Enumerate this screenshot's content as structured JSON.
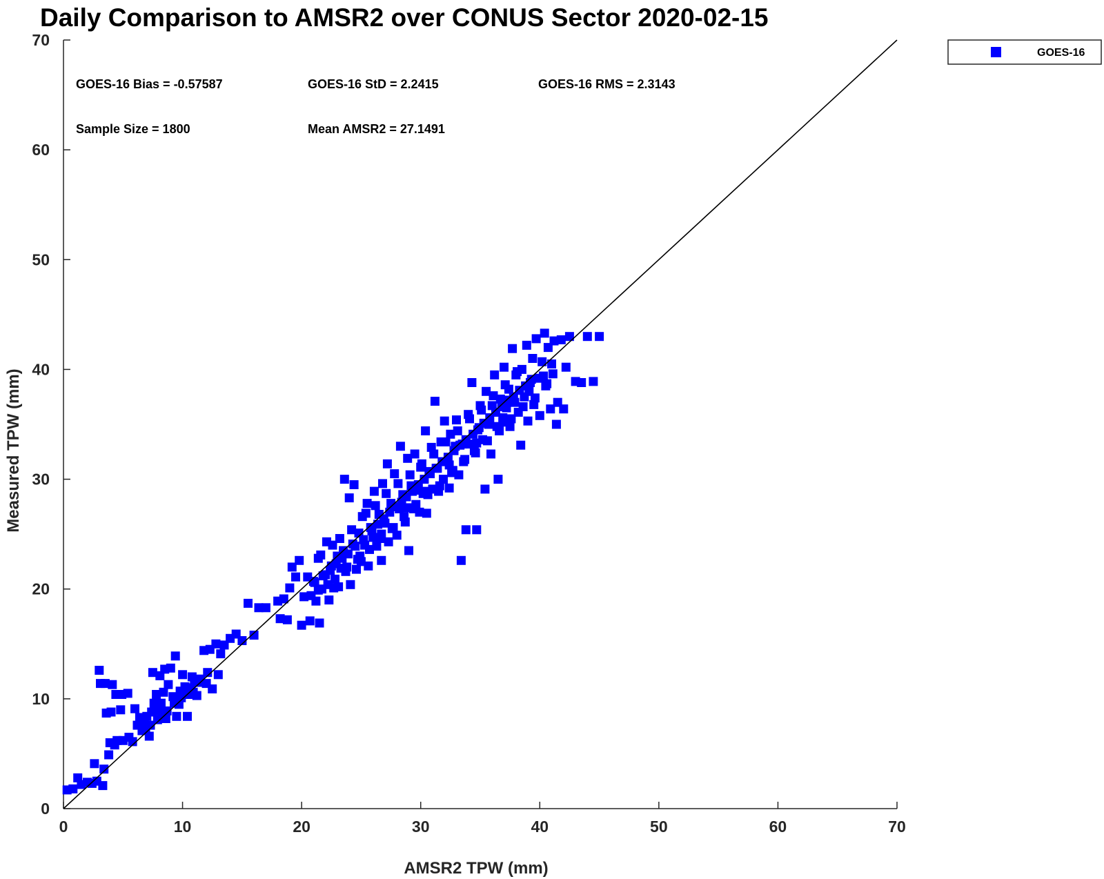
{
  "chart_data": {
    "type": "scatter",
    "title": "Daily Comparison to AMSR2 over CONUS Sector 2020-02-15",
    "xlabel": "AMSR2 TPW (mm)",
    "ylabel": "Measured TPW (mm)",
    "xlim": [
      0,
      70
    ],
    "ylim": [
      0,
      70
    ],
    "xticks": [
      "0",
      "10",
      "20",
      "30",
      "40",
      "50",
      "60",
      "70"
    ],
    "yticks": [
      "0",
      "10",
      "20",
      "30",
      "40",
      "50",
      "60",
      "70"
    ],
    "grid": false,
    "legend_position": "outside top-right",
    "reference_line": {
      "x": [
        0,
        70
      ],
      "y": [
        0,
        70
      ]
    },
    "stats": {
      "bias": "GOES-16 Bias = -0.57587",
      "std": "GOES-16 StD = 2.2415",
      "rms": "GOES-16 RMS = 2.3143",
      "sample_size": "Sample Size = 1800",
      "mean": "Mean AMSR2 = 27.1491"
    },
    "series": [
      {
        "name": "GOES-16",
        "color": "#0000ff",
        "marker": "square",
        "points": [
          [
            0.3,
            1.7
          ],
          [
            0.8,
            1.8
          ],
          [
            1.2,
            2.8
          ],
          [
            1.5,
            2.2
          ],
          [
            2.0,
            2.4
          ],
          [
            2.4,
            2.3
          ],
          [
            2.6,
            4.1
          ],
          [
            2.8,
            2.5
          ],
          [
            3.0,
            12.6
          ],
          [
            3.1,
            11.4
          ],
          [
            3.3,
            2.1
          ],
          [
            3.4,
            3.6
          ],
          [
            3.5,
            11.4
          ],
          [
            3.6,
            8.7
          ],
          [
            3.8,
            4.9
          ],
          [
            3.9,
            6.0
          ],
          [
            4.0,
            8.8
          ],
          [
            4.1,
            11.3
          ],
          [
            4.3,
            5.8
          ],
          [
            4.4,
            10.4
          ],
          [
            4.5,
            6.2
          ],
          [
            4.8,
            9.0
          ],
          [
            4.9,
            10.4
          ],
          [
            5.0,
            6.2
          ],
          [
            5.4,
            10.5
          ],
          [
            5.5,
            6.5
          ],
          [
            5.8,
            6.1
          ],
          [
            6.0,
            9.1
          ],
          [
            6.2,
            7.6
          ],
          [
            6.4,
            8.3
          ],
          [
            6.6,
            7.1
          ],
          [
            6.8,
            7.9
          ],
          [
            7.0,
            8.4
          ],
          [
            7.2,
            6.6
          ],
          [
            7.4,
            8.8
          ],
          [
            7.5,
            12.4
          ],
          [
            7.6,
            9.6
          ],
          [
            7.8,
            10.4
          ],
          [
            8.0,
            8.9
          ],
          [
            8.1,
            12.1
          ],
          [
            8.2,
            9.6
          ],
          [
            8.4,
            10.6
          ],
          [
            8.5,
            12.7
          ],
          [
            8.6,
            8.2
          ],
          [
            8.8,
            11.3
          ],
          [
            9.0,
            12.8
          ],
          [
            9.2,
            10.2
          ],
          [
            9.4,
            13.9
          ],
          [
            9.5,
            8.4
          ],
          [
            9.8,
            10.7
          ],
          [
            10.0,
            12.2
          ],
          [
            10.2,
            11.1
          ],
          [
            10.4,
            8.4
          ],
          [
            10.5,
            10.4
          ],
          [
            10.8,
            12.0
          ],
          [
            11.0,
            11.6
          ],
          [
            11.2,
            10.3
          ],
          [
            11.5,
            11.8
          ],
          [
            11.8,
            14.4
          ],
          [
            12.0,
            11.4
          ],
          [
            12.3,
            14.5
          ],
          [
            12.5,
            10.9
          ],
          [
            12.8,
            15.0
          ],
          [
            13.0,
            12.2
          ],
          [
            13.2,
            14.1
          ],
          [
            13.5,
            14.9
          ],
          [
            14.0,
            15.5
          ],
          [
            14.5,
            15.9
          ],
          [
            15.0,
            15.3
          ],
          [
            15.5,
            18.7
          ],
          [
            16.0,
            15.8
          ],
          [
            16.4,
            18.3
          ],
          [
            17.0,
            18.3
          ],
          [
            18.0,
            18.9
          ],
          [
            18.2,
            17.3
          ],
          [
            18.5,
            19.1
          ],
          [
            18.8,
            17.2
          ],
          [
            19.0,
            20.1
          ],
          [
            19.2,
            22.0
          ],
          [
            19.5,
            21.1
          ],
          [
            19.8,
            22.6
          ],
          [
            20.0,
            16.7
          ],
          [
            20.2,
            19.3
          ],
          [
            20.5,
            21.1
          ],
          [
            20.7,
            17.1
          ],
          [
            21.0,
            20.7
          ],
          [
            21.2,
            18.9
          ],
          [
            21.4,
            22.8
          ],
          [
            21.5,
            16.9
          ],
          [
            21.7,
            20.0
          ],
          [
            22.0,
            21.3
          ],
          [
            22.1,
            24.3
          ],
          [
            22.3,
            19.0
          ],
          [
            22.5,
            22.1
          ],
          [
            22.7,
            20.1
          ],
          [
            23.0,
            23.0
          ],
          [
            23.1,
            20.2
          ],
          [
            23.3,
            21.9
          ],
          [
            23.5,
            23.5
          ],
          [
            23.6,
            30.0
          ],
          [
            23.8,
            22.0
          ],
          [
            24.0,
            28.3
          ],
          [
            24.1,
            20.4
          ],
          [
            24.3,
            24.1
          ],
          [
            24.4,
            29.5
          ],
          [
            24.6,
            21.8
          ],
          [
            24.8,
            25.1
          ],
          [
            25.0,
            22.5
          ],
          [
            25.1,
            26.6
          ],
          [
            25.3,
            24.0
          ],
          [
            25.5,
            27.8
          ],
          [
            25.6,
            22.1
          ],
          [
            25.8,
            25.6
          ],
          [
            26.0,
            24.7
          ],
          [
            26.1,
            28.9
          ],
          [
            26.3,
            23.9
          ],
          [
            26.5,
            26.8
          ],
          [
            26.7,
            22.6
          ],
          [
            26.8,
            29.6
          ],
          [
            27.0,
            26.0
          ],
          [
            27.2,
            31.4
          ],
          [
            27.3,
            24.3
          ],
          [
            27.5,
            27.8
          ],
          [
            27.7,
            25.6
          ],
          [
            27.8,
            30.5
          ],
          [
            28.0,
            24.9
          ],
          [
            28.2,
            27.3
          ],
          [
            28.3,
            33.0
          ],
          [
            28.5,
            28.6
          ],
          [
            28.7,
            26.1
          ],
          [
            28.9,
            31.9
          ],
          [
            29.0,
            23.5
          ],
          [
            29.2,
            29.4
          ],
          [
            29.4,
            27.3
          ],
          [
            29.5,
            32.3
          ],
          [
            29.7,
            29.0
          ],
          [
            29.9,
            27.0
          ],
          [
            30.0,
            31.1
          ],
          [
            30.2,
            28.7
          ],
          [
            30.4,
            34.4
          ],
          [
            30.5,
            26.9
          ],
          [
            30.7,
            30.7
          ],
          [
            30.9,
            32.9
          ],
          [
            31.0,
            29.1
          ],
          [
            31.2,
            37.1
          ],
          [
            31.4,
            31.0
          ],
          [
            31.5,
            28.9
          ],
          [
            31.7,
            33.4
          ],
          [
            31.9,
            30.0
          ],
          [
            32.0,
            35.3
          ],
          [
            32.2,
            31.6
          ],
          [
            32.4,
            29.2
          ],
          [
            32.5,
            34.1
          ],
          [
            32.7,
            30.8
          ],
          [
            32.9,
            33.0
          ],
          [
            33.0,
            35.4
          ],
          [
            33.2,
            30.4
          ],
          [
            33.4,
            22.6
          ],
          [
            33.5,
            33.2
          ],
          [
            33.7,
            31.8
          ],
          [
            33.8,
            25.4
          ],
          [
            34.0,
            35.9
          ],
          [
            34.2,
            33.2
          ],
          [
            34.3,
            38.8
          ],
          [
            34.5,
            32.6
          ],
          [
            34.7,
            25.4
          ],
          [
            34.8,
            34.5
          ],
          [
            35.0,
            36.7
          ],
          [
            35.2,
            33.6
          ],
          [
            35.4,
            29.1
          ],
          [
            35.5,
            38.0
          ],
          [
            35.7,
            35.0
          ],
          [
            35.9,
            32.3
          ],
          [
            36.0,
            36.7
          ],
          [
            36.2,
            39.5
          ],
          [
            36.4,
            34.8
          ],
          [
            36.5,
            30.0
          ],
          [
            36.7,
            37.3
          ],
          [
            36.9,
            35.2
          ],
          [
            37.0,
            40.2
          ],
          [
            37.2,
            36.5
          ],
          [
            37.4,
            38.2
          ],
          [
            37.5,
            34.8
          ],
          [
            37.7,
            41.9
          ],
          [
            37.9,
            37.0
          ],
          [
            38.0,
            39.5
          ],
          [
            38.2,
            36.1
          ],
          [
            38.4,
            33.1
          ],
          [
            38.5,
            40.0
          ],
          [
            38.7,
            37.5
          ],
          [
            38.9,
            42.2
          ],
          [
            39.0,
            35.3
          ],
          [
            39.2,
            38.8
          ],
          [
            39.4,
            41.0
          ],
          [
            39.5,
            36.8
          ],
          [
            39.7,
            42.8
          ],
          [
            39.9,
            39.2
          ],
          [
            40.0,
            35.8
          ],
          [
            40.2,
            40.7
          ],
          [
            40.4,
            43.3
          ],
          [
            40.5,
            38.5
          ],
          [
            40.7,
            42.0
          ],
          [
            40.9,
            36.4
          ],
          [
            41.0,
            40.5
          ],
          [
            41.2,
            42.6
          ],
          [
            41.4,
            35.0
          ],
          [
            41.5,
            37.0
          ],
          [
            41.8,
            42.7
          ],
          [
            42.0,
            36.4
          ],
          [
            42.2,
            40.2
          ],
          [
            42.5,
            43.0
          ],
          [
            43.0,
            38.9
          ],
          [
            43.5,
            38.8
          ],
          [
            44.0,
            43.0
          ],
          [
            44.5,
            38.9
          ],
          [
            45.0,
            43.0
          ],
          [
            7.3,
            7.6
          ],
          [
            7.9,
            8.1
          ],
          [
            8.7,
            8.9
          ],
          [
            9.3,
            9.6
          ],
          [
            9.9,
            10.1
          ],
          [
            10.7,
            11.0
          ],
          [
            11.3,
            11.5
          ],
          [
            6.9,
            7.3
          ],
          [
            8.3,
            8.5
          ],
          [
            9.7,
            9.5
          ],
          [
            10.9,
            10.6
          ],
          [
            12.1,
            12.4
          ],
          [
            21.1,
            20.6
          ],
          [
            21.8,
            21.2
          ],
          [
            22.4,
            21.7
          ],
          [
            22.9,
            22.3
          ],
          [
            23.4,
            22.8
          ],
          [
            23.9,
            23.2
          ],
          [
            24.5,
            23.9
          ],
          [
            25.2,
            24.5
          ],
          [
            25.9,
            25.3
          ],
          [
            26.4,
            25.9
          ],
          [
            26.9,
            26.4
          ],
          [
            27.4,
            27.0
          ],
          [
            27.9,
            27.5
          ],
          [
            28.4,
            27.9
          ],
          [
            28.8,
            28.4
          ],
          [
            29.3,
            28.9
          ],
          [
            29.8,
            29.5
          ],
          [
            30.3,
            30.0
          ],
          [
            30.8,
            30.5
          ],
          [
            31.3,
            31.0
          ],
          [
            31.8,
            31.6
          ],
          [
            32.3,
            32.0
          ],
          [
            32.8,
            32.6
          ],
          [
            33.3,
            33.1
          ],
          [
            33.8,
            33.6
          ],
          [
            34.4,
            34.1
          ],
          [
            34.9,
            34.7
          ],
          [
            35.3,
            35.1
          ],
          [
            35.8,
            35.6
          ],
          [
            36.3,
            36.1
          ],
          [
            36.8,
            36.6
          ],
          [
            37.3,
            37.2
          ],
          [
            37.8,
            37.5
          ],
          [
            38.3,
            38.1
          ],
          [
            38.8,
            38.5
          ],
          [
            39.3,
            39.1
          ],
          [
            21.6,
            23.1
          ],
          [
            22.6,
            24.0
          ],
          [
            23.2,
            24.6
          ],
          [
            24.2,
            25.4
          ],
          [
            25.4,
            26.9
          ],
          [
            26.2,
            27.6
          ],
          [
            27.1,
            28.7
          ],
          [
            28.1,
            29.6
          ],
          [
            29.1,
            30.4
          ],
          [
            30.1,
            31.4
          ],
          [
            31.1,
            32.3
          ],
          [
            32.1,
            33.4
          ],
          [
            33.1,
            34.4
          ],
          [
            34.1,
            35.5
          ],
          [
            35.1,
            36.3
          ],
          [
            36.1,
            37.6
          ],
          [
            37.1,
            38.6
          ],
          [
            38.1,
            39.8
          ],
          [
            22.2,
            20.4
          ],
          [
            23.7,
            21.6
          ],
          [
            24.7,
            22.7
          ],
          [
            25.7,
            23.6
          ],
          [
            26.6,
            24.6
          ],
          [
            27.6,
            25.5
          ],
          [
            28.6,
            26.6
          ],
          [
            29.6,
            27.7
          ],
          [
            30.6,
            28.6
          ],
          [
            31.6,
            29.4
          ],
          [
            32.6,
            30.6
          ],
          [
            33.6,
            31.6
          ],
          [
            34.6,
            32.4
          ],
          [
            35.6,
            33.5
          ],
          [
            36.6,
            34.4
          ],
          [
            37.6,
            35.5
          ],
          [
            38.6,
            36.6
          ],
          [
            39.6,
            37.4
          ],
          [
            40.6,
            38.7
          ],
          [
            41.1,
            39.6
          ],
          [
            20.8,
            19.4
          ],
          [
            21.4,
            19.9
          ],
          [
            22.8,
            20.9
          ],
          [
            24.9,
            23.0
          ],
          [
            26.7,
            25.0
          ],
          [
            28.9,
            27.4
          ],
          [
            30.4,
            28.9
          ],
          [
            32.4,
            31.3
          ],
          [
            34.7,
            33.3
          ],
          [
            36.9,
            35.6
          ],
          [
            39.1,
            38.0
          ],
          [
            40.3,
            39.4
          ]
        ]
      }
    ]
  }
}
